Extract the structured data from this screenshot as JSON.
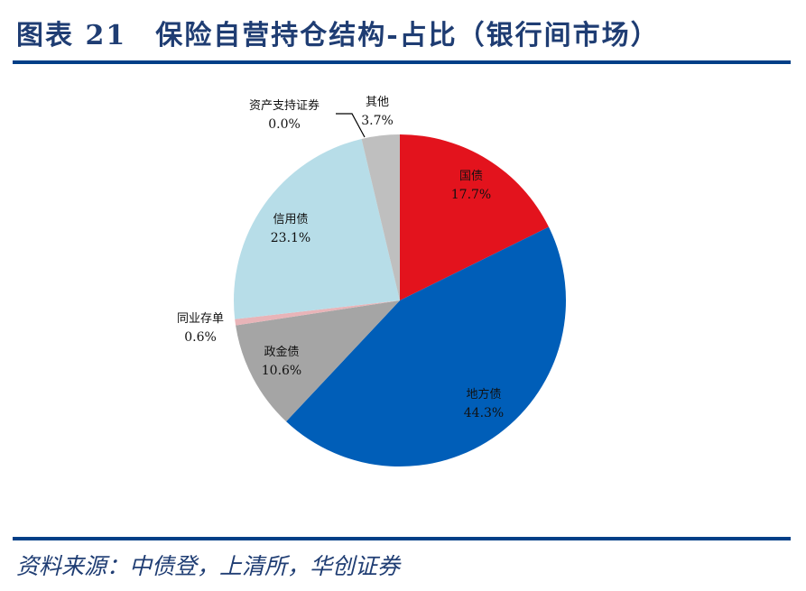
{
  "header": {
    "title": "图表 21　保险自营持仓结构-占比（银行间市场）"
  },
  "footer": {
    "source": "资料来源：中债登，上清所，华创证券"
  },
  "colors": {
    "rule": "#003f87",
    "title": "#1f3d73"
  },
  "chart_data": {
    "type": "pie",
    "title": "保险自营持仓结构-占比（银行间市场）",
    "start_angle": "12 o'clock, clockwise",
    "categories": [
      "国债",
      "地方债",
      "政金债",
      "同业存单",
      "信用债",
      "资产支持证券",
      "其他"
    ],
    "values": [
      17.7,
      44.3,
      10.6,
      0.6,
      23.1,
      0.0,
      3.7
    ],
    "unit": "%",
    "colors": [
      "#e3131d",
      "#005eb8",
      "#a5a5a5",
      "#e8b4b8",
      "#b7dde8",
      "#f2c6a0",
      "#bfbfbf"
    ],
    "labels": [
      {
        "name": "国债",
        "value": "17.7%"
      },
      {
        "name": "地方债",
        "value": "44.3%"
      },
      {
        "name": "政金债",
        "value": "10.6%"
      },
      {
        "name": "同业存单",
        "value": "0.6%"
      },
      {
        "name": "信用债",
        "value": "23.1%"
      },
      {
        "name": "资产支持证券",
        "value": "0.0%"
      },
      {
        "name": "其他",
        "value": "3.7%"
      }
    ],
    "legend": "none (data labels)"
  }
}
